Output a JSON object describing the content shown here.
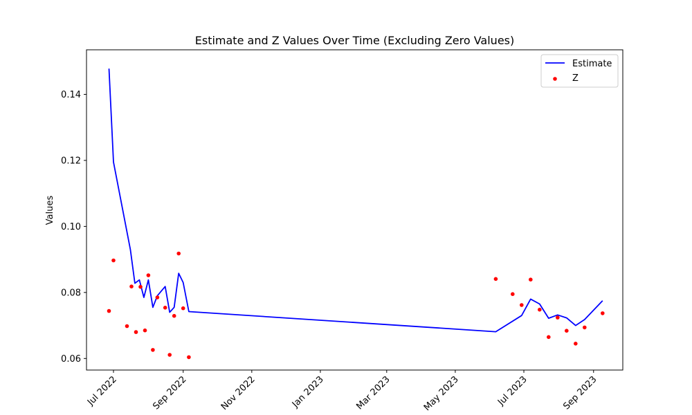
{
  "chart_data": {
    "type": "line",
    "title": "Estimate and Z Values Over Time (Excluding Zero Values)",
    "xlabel": "",
    "ylabel": "Values",
    "x_range": [
      "2022-06-07",
      "2023-09-27"
    ],
    "ylim": [
      0.0565,
      0.1535
    ],
    "x_ticks": [
      {
        "date": "2022-07-01",
        "label": "Jul 2022"
      },
      {
        "date": "2022-09-01",
        "label": "Sep 2022"
      },
      {
        "date": "2022-11-01",
        "label": "Nov 2022"
      },
      {
        "date": "2023-01-01",
        "label": "Jan 2023"
      },
      {
        "date": "2023-03-01",
        "label": "Mar 2023"
      },
      {
        "date": "2023-05-01",
        "label": "May 2023"
      },
      {
        "date": "2023-07-01",
        "label": "Jul 2023"
      },
      {
        "date": "2023-09-01",
        "label": "Sep 2023"
      }
    ],
    "y_ticks": [
      {
        "value": 0.06,
        "label": "0.06"
      },
      {
        "value": 0.08,
        "label": "0.08"
      },
      {
        "value": 0.1,
        "label": "0.10"
      },
      {
        "value": 0.12,
        "label": "0.12"
      },
      {
        "value": 0.14,
        "label": "0.14"
      }
    ],
    "grid": false,
    "legend_position": "top-right",
    "legend": [
      {
        "name": "Estimate",
        "kind": "line",
        "color": "#0000ff"
      },
      {
        "name": "Z",
        "kind": "scatter",
        "color": "#ff0000"
      }
    ],
    "series": [
      {
        "name": "Estimate",
        "type": "line",
        "color": "#0000ff",
        "points": [
          {
            "x": "2022-06-27",
            "y": 0.1478
          },
          {
            "x": "2022-07-01",
            "y": 0.1195
          },
          {
            "x": "2022-07-16",
            "y": 0.093
          },
          {
            "x": "2022-07-20",
            "y": 0.0828
          },
          {
            "x": "2022-07-24",
            "y": 0.0838
          },
          {
            "x": "2022-07-28",
            "y": 0.0785
          },
          {
            "x": "2022-08-01",
            "y": 0.0838
          },
          {
            "x": "2022-08-05",
            "y": 0.0755
          },
          {
            "x": "2022-08-09",
            "y": 0.079
          },
          {
            "x": "2022-08-16",
            "y": 0.0818
          },
          {
            "x": "2022-08-20",
            "y": 0.074
          },
          {
            "x": "2022-08-24",
            "y": 0.0755
          },
          {
            "x": "2022-08-28",
            "y": 0.0858
          },
          {
            "x": "2022-09-01",
            "y": 0.083
          },
          {
            "x": "2022-09-06",
            "y": 0.0742
          },
          {
            "x": "2023-06-06",
            "y": 0.0681
          },
          {
            "x": "2023-06-29",
            "y": 0.073
          },
          {
            "x": "2023-07-07",
            "y": 0.078
          },
          {
            "x": "2023-07-15",
            "y": 0.0765
          },
          {
            "x": "2023-07-23",
            "y": 0.0722
          },
          {
            "x": "2023-07-31",
            "y": 0.0732
          },
          {
            "x": "2023-08-08",
            "y": 0.0723
          },
          {
            "x": "2023-08-16",
            "y": 0.07
          },
          {
            "x": "2023-08-24",
            "y": 0.0718
          },
          {
            "x": "2023-09-09",
            "y": 0.0775
          }
        ]
      },
      {
        "name": "Z",
        "type": "scatter",
        "color": "#ff0000",
        "points": [
          {
            "x": "2022-06-27",
            "y": 0.0744
          },
          {
            "x": "2022-07-01",
            "y": 0.0897
          },
          {
            "x": "2022-07-13",
            "y": 0.0698
          },
          {
            "x": "2022-07-17",
            "y": 0.0818
          },
          {
            "x": "2022-07-21",
            "y": 0.068
          },
          {
            "x": "2022-07-25",
            "y": 0.0817
          },
          {
            "x": "2022-07-29",
            "y": 0.0685
          },
          {
            "x": "2022-08-01",
            "y": 0.0852
          },
          {
            "x": "2022-08-05",
            "y": 0.0626
          },
          {
            "x": "2022-08-09",
            "y": 0.0785
          },
          {
            "x": "2022-08-16",
            "y": 0.0754
          },
          {
            "x": "2022-08-20",
            "y": 0.0611
          },
          {
            "x": "2022-08-24",
            "y": 0.0729
          },
          {
            "x": "2022-08-28",
            "y": 0.0918
          },
          {
            "x": "2022-09-01",
            "y": 0.0752
          },
          {
            "x": "2022-09-06",
            "y": 0.0604
          },
          {
            "x": "2023-06-06",
            "y": 0.0841
          },
          {
            "x": "2023-06-21",
            "y": 0.0795
          },
          {
            "x": "2023-06-29",
            "y": 0.0762
          },
          {
            "x": "2023-07-07",
            "y": 0.0839
          },
          {
            "x": "2023-07-15",
            "y": 0.0748
          },
          {
            "x": "2023-07-23",
            "y": 0.0665
          },
          {
            "x": "2023-07-31",
            "y": 0.0724
          },
          {
            "x": "2023-08-08",
            "y": 0.0684
          },
          {
            "x": "2023-08-16",
            "y": 0.0645
          },
          {
            "x": "2023-08-24",
            "y": 0.0694
          },
          {
            "x": "2023-09-09",
            "y": 0.0737
          }
        ]
      }
    ]
  }
}
